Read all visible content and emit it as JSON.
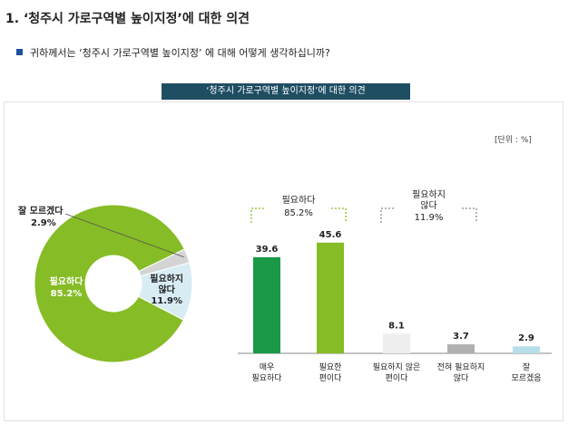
{
  "page": {
    "heading": "1. ‘청주시 가로구역별 높이지정’에 대한 의견",
    "question": "귀하께서는 ‘청주시 가로구역별 높이지정’ 에 대해 어떻게 생각하십니까?",
    "banner": "‘청주시 가로구역별 높이지정’에 대한 의견",
    "unit": "[단위 : %]"
  },
  "chart_data": [
    {
      "type": "pie",
      "donut": true,
      "slices": [
        {
          "label": "필요하다",
          "value": 85.2,
          "value_text": "85.2%",
          "color": "#86bc25"
        },
        {
          "label": "잘 모르겠다",
          "value": 2.9,
          "value_text": "2.9%",
          "color": "#d4d4d4"
        },
        {
          "label": "필요하지 않다",
          "value": 11.9,
          "value_text": "11.9%",
          "color": "#d8ecf4"
        }
      ]
    },
    {
      "type": "bar",
      "categories": [
        "매우 필요하다",
        "필요한 편이다",
        "필요하지 않은 편이다",
        "전혀 필요하지 않다",
        "잘 모르겠음"
      ],
      "values": [
        39.6,
        45.6,
        8.1,
        3.7,
        2.9
      ],
      "value_labels": [
        "39.6",
        "45.6",
        "8.1",
        "3.7",
        "2.9"
      ],
      "colors": [
        "#1a9a49",
        "#86bc25",
        "#eeeeee",
        "#b0b0b0",
        "#b7dfea"
      ],
      "groups": [
        {
          "label": "필요하다",
          "value_text": "85.2%",
          "members": [
            0,
            1
          ]
        },
        {
          "label": "필요하지 않다",
          "value_text": "11.9%",
          "members": [
            2,
            3
          ]
        }
      ],
      "ylim": [
        0,
        50
      ]
    }
  ]
}
